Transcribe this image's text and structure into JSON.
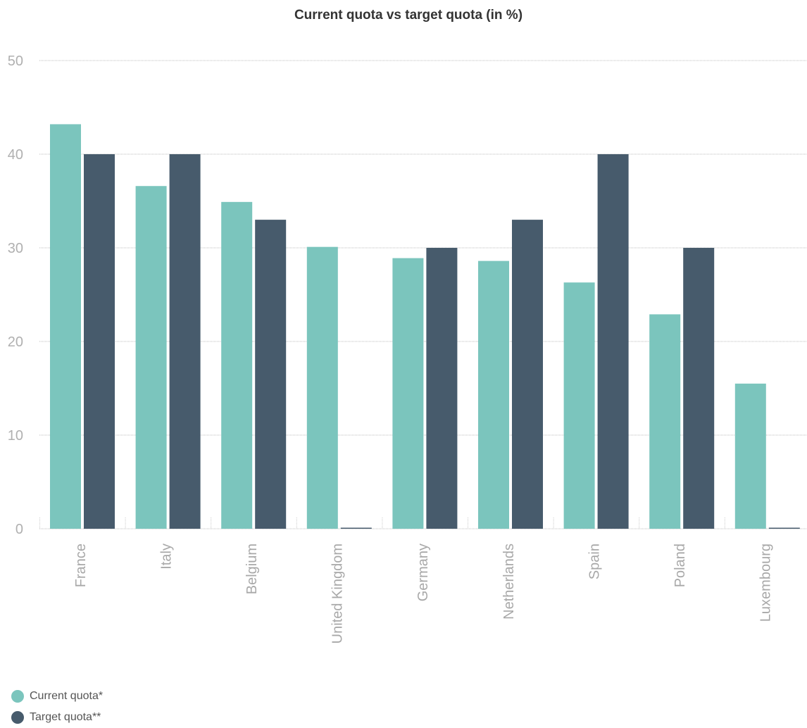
{
  "chart_data": {
    "type": "bar",
    "title": "Current quota vs target quota (in %)",
    "xlabel": "",
    "ylabel": "",
    "categories": [
      "France",
      "Italy",
      "Belgium",
      "United Kingdom",
      "Germany",
      "Netherlands",
      "Spain",
      "Poland",
      "Luxembourg"
    ],
    "series": [
      {
        "name": "Current quota*",
        "color": "#7bc5bd",
        "values": [
          43.2,
          36.6,
          34.9,
          30.1,
          28.9,
          28.6,
          26.3,
          22.9,
          15.5
        ]
      },
      {
        "name": "Target quota**",
        "color": "#475b6c",
        "values": [
          40,
          40,
          33,
          0,
          30,
          33,
          40,
          30,
          0
        ]
      }
    ],
    "ylim": [
      0,
      50
    ],
    "yticks": [
      "0",
      "10",
      "20",
      "30",
      "40",
      "50"
    ],
    "grid": true,
    "legend_position": "bottom-left"
  }
}
